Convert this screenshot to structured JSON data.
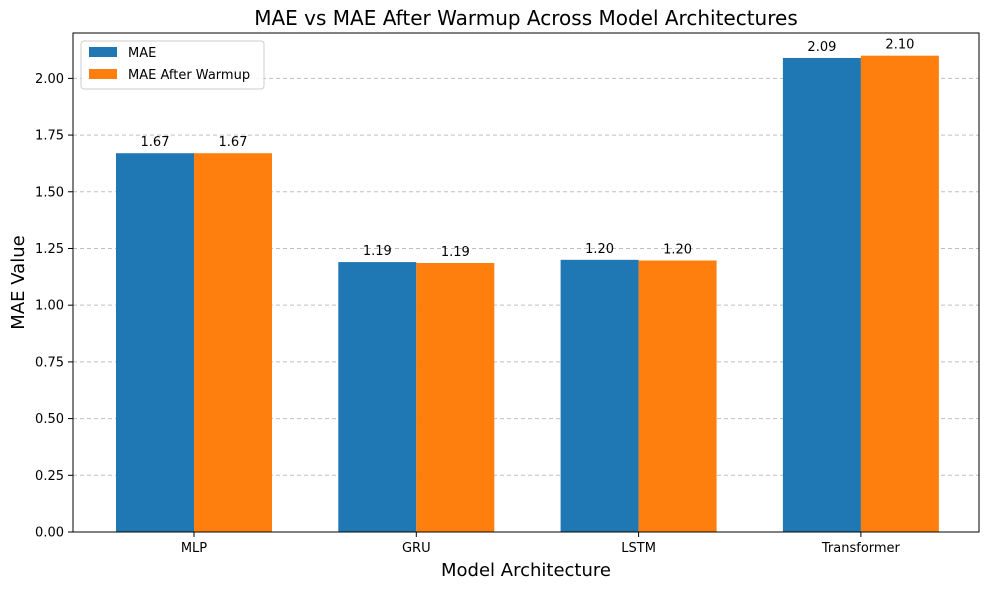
{
  "chart_data": {
    "type": "bar",
    "title": "MAE vs MAE After Warmup Across Model Architectures",
    "xlabel": "Model Architecture",
    "ylabel": "MAE Value",
    "categories": [
      "MLP",
      "GRU",
      "LSTM",
      "Transformer"
    ],
    "series": [
      {
        "name": "MAE",
        "values": [
          1.67,
          1.19,
          1.2,
          2.09
        ],
        "labels": [
          "1.67",
          "1.19",
          "1.20",
          "2.09"
        ],
        "color": "#1f77b4"
      },
      {
        "name": "MAE After Warmup",
        "values": [
          1.67,
          1.186,
          1.197,
          2.1
        ],
        "labels": [
          "1.67",
          "1.19",
          "1.20",
          "2.10"
        ],
        "color": "#ff7f0e"
      }
    ],
    "ylim": [
      0,
      2.2
    ],
    "yticks": [
      0.0,
      0.25,
      0.5,
      0.75,
      1.0,
      1.25,
      1.5,
      1.75,
      2.0
    ],
    "ytick_labels": [
      "0.00",
      "0.25",
      "0.50",
      "0.75",
      "1.00",
      "1.25",
      "1.50",
      "1.75",
      "2.00"
    ],
    "grid": "y-dashed",
    "legend_position": "top-left"
  }
}
